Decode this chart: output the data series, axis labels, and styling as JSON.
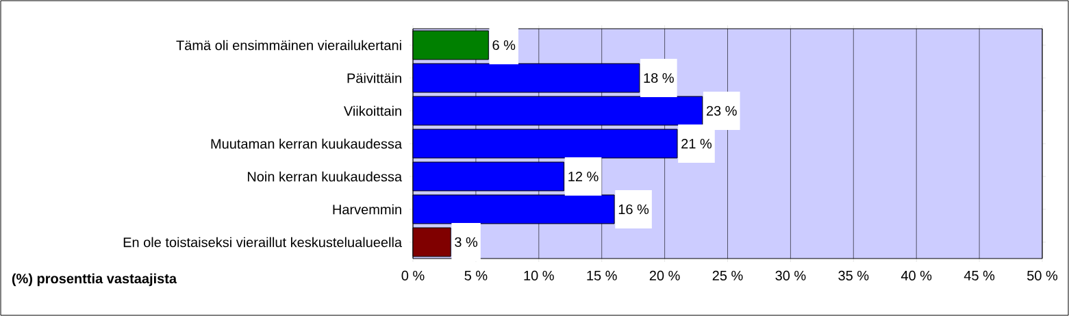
{
  "chart_data": {
    "type": "bar",
    "orientation": "horizontal",
    "xlabel": "(%) prosenttia vastaajista",
    "categories": [
      "Tämä oli ensimmäinen vierailukertani",
      "Päivittäin",
      "Viikoittain",
      "Muutaman kerran kuukaudessa",
      "Noin kerran kuukaudessa",
      "Harvemmin",
      "En ole toistaiseksi vieraillut keskustelualueella"
    ],
    "values": [
      6,
      18,
      23,
      21,
      12,
      16,
      3
    ],
    "colors": [
      "#008000",
      "#0000ff",
      "#0000ff",
      "#0000ff",
      "#0000ff",
      "#0000ff",
      "#800000"
    ],
    "value_labels": [
      "6 %",
      "18 %",
      "23 %",
      "21 %",
      "12 %",
      "16 %",
      "3 %"
    ],
    "xlim": [
      0,
      50
    ],
    "xticks": [
      {
        "value": 0,
        "label": "0 %"
      },
      {
        "value": 5,
        "label": "5 %"
      },
      {
        "value": 10,
        "label": "10 %"
      },
      {
        "value": 15,
        "label": "15 %"
      },
      {
        "value": 20,
        "label": "20 %"
      },
      {
        "value": 25,
        "label": "25 %"
      },
      {
        "value": 30,
        "label": "30 %"
      },
      {
        "value": 35,
        "label": "35 %"
      },
      {
        "value": 40,
        "label": "40 %"
      },
      {
        "value": 45,
        "label": "45 %"
      },
      {
        "value": 50,
        "label": "50 %"
      }
    ],
    "grid": "x"
  }
}
